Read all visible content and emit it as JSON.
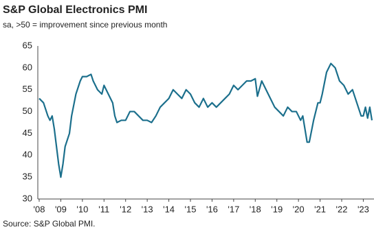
{
  "chart_data": {
    "type": "line",
    "title": "S&P Global Electronics PMI",
    "subtitle": "sa, >50 = improvement since previous month",
    "source": "Source: S&P Global PMI.",
    "x": [
      2008.0,
      2008.2,
      2008.4,
      2008.5,
      2008.6,
      2008.7,
      2008.8,
      2008.9,
      2009.0,
      2009.1,
      2009.2,
      2009.4,
      2009.5,
      2009.7,
      2009.9,
      2010.0,
      2010.2,
      2010.4,
      2010.5,
      2010.7,
      2010.9,
      2011.0,
      2011.2,
      2011.4,
      2011.5,
      2011.6,
      2011.8,
      2012.0,
      2012.2,
      2012.4,
      2012.6,
      2012.8,
      2013.0,
      2013.2,
      2013.4,
      2013.6,
      2013.8,
      2014.0,
      2014.2,
      2014.4,
      2014.6,
      2014.8,
      2015.0,
      2015.2,
      2015.4,
      2015.6,
      2015.8,
      2016.0,
      2016.2,
      2016.4,
      2016.6,
      2016.8,
      2017.0,
      2017.2,
      2017.4,
      2017.6,
      2017.8,
      2018.0,
      2018.1,
      2018.3,
      2018.5,
      2018.7,
      2018.9,
      2019.1,
      2019.3,
      2019.5,
      2019.7,
      2019.9,
      2020.1,
      2020.2,
      2020.4,
      2020.5,
      2020.7,
      2020.9,
      2021.0,
      2021.1,
      2021.3,
      2021.5,
      2021.7,
      2021.9,
      2022.1,
      2022.3,
      2022.5,
      2022.7,
      2022.9,
      2023.0,
      2023.1,
      2023.2,
      2023.3,
      2023.4
    ],
    "series": [
      {
        "name": "Electronics PMI",
        "color": "#1b6f8c",
        "values": [
          53,
          52,
          49,
          48,
          49,
          46,
          42,
          38,
          35,
          38,
          42,
          45,
          49,
          54,
          57,
          58,
          58,
          58.5,
          57,
          55,
          54,
          56,
          54,
          52,
          49,
          47.5,
          48,
          48,
          50,
          50,
          49,
          48,
          48,
          47.5,
          49,
          51,
          52,
          53,
          55,
          54,
          53,
          55,
          54,
          52,
          51,
          53,
          51,
          52,
          51,
          52,
          53,
          54,
          56,
          55,
          56,
          57,
          57,
          57.5,
          53.5,
          57,
          55,
          53,
          51,
          50,
          49,
          51,
          50,
          50,
          48,
          49,
          43,
          43,
          48,
          52,
          52,
          54,
          59,
          61,
          60,
          57,
          56,
          54,
          55,
          52,
          49,
          49,
          51,
          48.5,
          51,
          48
        ]
      }
    ],
    "xlim": [
      2008,
      2023.4
    ],
    "xticks": [
      {
        "value": 2008,
        "label": "'08"
      },
      {
        "value": 2009,
        "label": "'09"
      },
      {
        "value": 2010,
        "label": "'10"
      },
      {
        "value": 2011,
        "label": "'11"
      },
      {
        "value": 2012,
        "label": "'12"
      },
      {
        "value": 2013,
        "label": "'13"
      },
      {
        "value": 2014,
        "label": "'14"
      },
      {
        "value": 2015,
        "label": "'15"
      },
      {
        "value": 2016,
        "label": "'16"
      },
      {
        "value": 2017,
        "label": "'17"
      },
      {
        "value": 2018,
        "label": "'18"
      },
      {
        "value": 2019,
        "label": "'19"
      },
      {
        "value": 2020,
        "label": "'20"
      },
      {
        "value": 2021,
        "label": "'21"
      },
      {
        "value": 2022,
        "label": "'22"
      },
      {
        "value": 2023,
        "label": "'23"
      }
    ],
    "ylim": [
      30,
      65
    ],
    "yticks": [
      30,
      35,
      40,
      45,
      50,
      55,
      60,
      65
    ],
    "grid": false
  }
}
